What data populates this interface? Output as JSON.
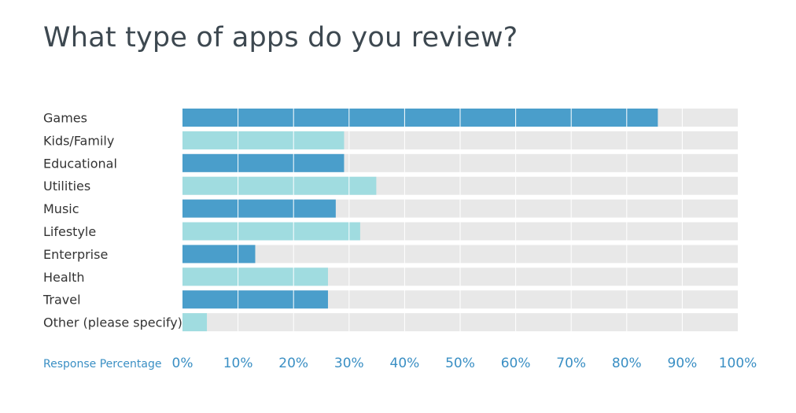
{
  "chart_data": {
    "type": "bar",
    "orientation": "horizontal",
    "title": "What type of apps do you review?",
    "xlabel": "Response Percentage",
    "ylabel": "",
    "xlim": [
      0,
      100
    ],
    "xticks": [
      "0%",
      "10%",
      "20%",
      "30%",
      "40%",
      "50%",
      "60%",
      "70%",
      "80%",
      "90%",
      "100%"
    ],
    "grid": true,
    "categories": [
      "Games",
      "Kids/Family",
      "Educational",
      "Utilities",
      "Music",
      "Lifestyle",
      "Enterprise",
      "Health",
      "Travel",
      "Other (please specify)"
    ],
    "values": [
      85.6,
      29.1,
      29.1,
      34.9,
      27.6,
      32.0,
      13.1,
      26.2,
      26.2,
      4.4
    ],
    "colors": {
      "dark": "#4a9ecb",
      "light": "#a0dce0",
      "track": "#e8e8e8",
      "gridline": "#ffffff",
      "ticks": "#3a8fc4"
    }
  }
}
